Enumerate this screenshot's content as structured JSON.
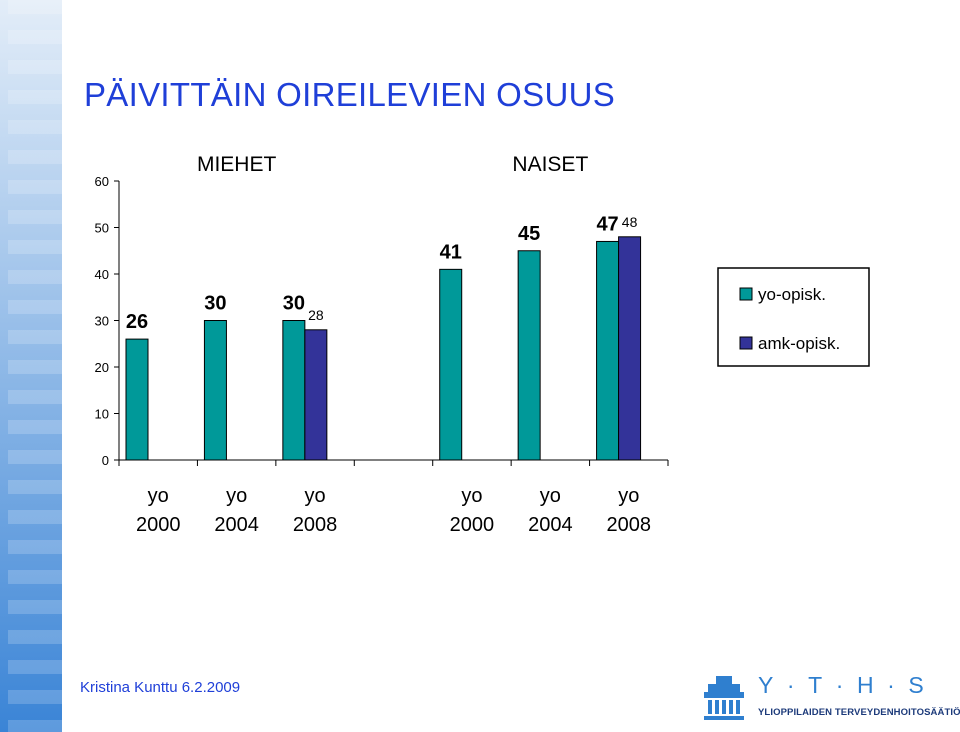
{
  "slide": {
    "title": "PÄIVITTÄIN OIREILEVIEN OSUUS",
    "footer_author": "Kristina Kunttu 6.2.2009"
  },
  "logo": {
    "letters": [
      "Y",
      "·",
      "T",
      "·",
      "H",
      "·",
      "S"
    ],
    "subtitle": "YLIOPPILAIDEN TERVEYDENHOITOSÄÄTIÖ"
  },
  "colors": {
    "yo_opisk": "#009999",
    "amk_opisk": "#333399",
    "title": "#1f3fd8",
    "logo_blue": "#2f7fcf"
  },
  "chart_data": {
    "type": "bar",
    "ylim": [
      0,
      60
    ],
    "yticks": [
      0,
      10,
      20,
      30,
      40,
      50,
      60
    ],
    "groups": [
      "MIEHET",
      "NAISET"
    ],
    "categories": [
      {
        "group": "MIEHET",
        "line1": "yo",
        "line2": "2000"
      },
      {
        "group": "MIEHET",
        "line1": "yo",
        "line2": "2004"
      },
      {
        "group": "MIEHET",
        "line1": "yo",
        "line2": "2008"
      },
      {
        "group": "NAISET",
        "line1": "yo",
        "line2": "2000"
      },
      {
        "group": "NAISET",
        "line1": "yo",
        "line2": "2004"
      },
      {
        "group": "NAISET",
        "line1": "yo",
        "line2": "2008"
      }
    ],
    "series": [
      {
        "name": "yo-opisk.",
        "color": "#009999",
        "values": [
          26,
          30,
          30,
          41,
          45,
          47
        ],
        "labels": [
          "26",
          "30",
          "30",
          "41",
          "45",
          "47"
        ]
      },
      {
        "name": "amk-opisk.",
        "color": "#333399",
        "values": [
          null,
          null,
          28,
          null,
          null,
          48
        ],
        "labels": [
          null,
          null,
          "28",
          null,
          null,
          "48"
        ]
      }
    ],
    "legend_position": "right",
    "grid": false
  }
}
